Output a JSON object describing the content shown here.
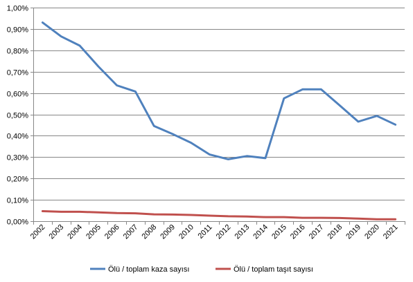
{
  "chart_data": {
    "type": "line",
    "title": "",
    "xlabel": "",
    "ylabel": "",
    "x": [
      "2002",
      "2003",
      "2004",
      "2005",
      "2006",
      "2007",
      "2008",
      "2009",
      "2010",
      "2011",
      "2012",
      "2013",
      "2014",
      "2015",
      "2016",
      "2017",
      "2018",
      "2019",
      "2020",
      "2021"
    ],
    "y_ticks": [
      "0,00%",
      "0,10%",
      "0,20%",
      "0,30%",
      "0,40%",
      "0,50%",
      "0,60%",
      "0,70%",
      "0,80%",
      "0,90%",
      "1,00%"
    ],
    "ylim": [
      0,
      1.0
    ],
    "y_unit": "%",
    "grid": "horizontal",
    "legend_position": "bottom",
    "series": [
      {
        "name": "Ölü / toplam kaza sayısı",
        "color": "#4F81BD",
        "values": [
          0.93,
          0.865,
          0.822,
          0.725,
          0.636,
          0.607,
          0.446,
          0.408,
          0.367,
          0.312,
          0.29,
          0.305,
          0.295,
          0.575,
          0.617,
          0.617,
          0.542,
          0.466,
          0.493,
          0.452
        ]
      },
      {
        "name": "Ölü / toplam taşıt sayısı",
        "color": "#C0504D",
        "values": [
          0.047,
          0.044,
          0.044,
          0.041,
          0.038,
          0.037,
          0.032,
          0.031,
          0.029,
          0.026,
          0.023,
          0.022,
          0.019,
          0.019,
          0.016,
          0.016,
          0.015,
          0.012,
          0.009,
          0.009
        ]
      }
    ]
  }
}
